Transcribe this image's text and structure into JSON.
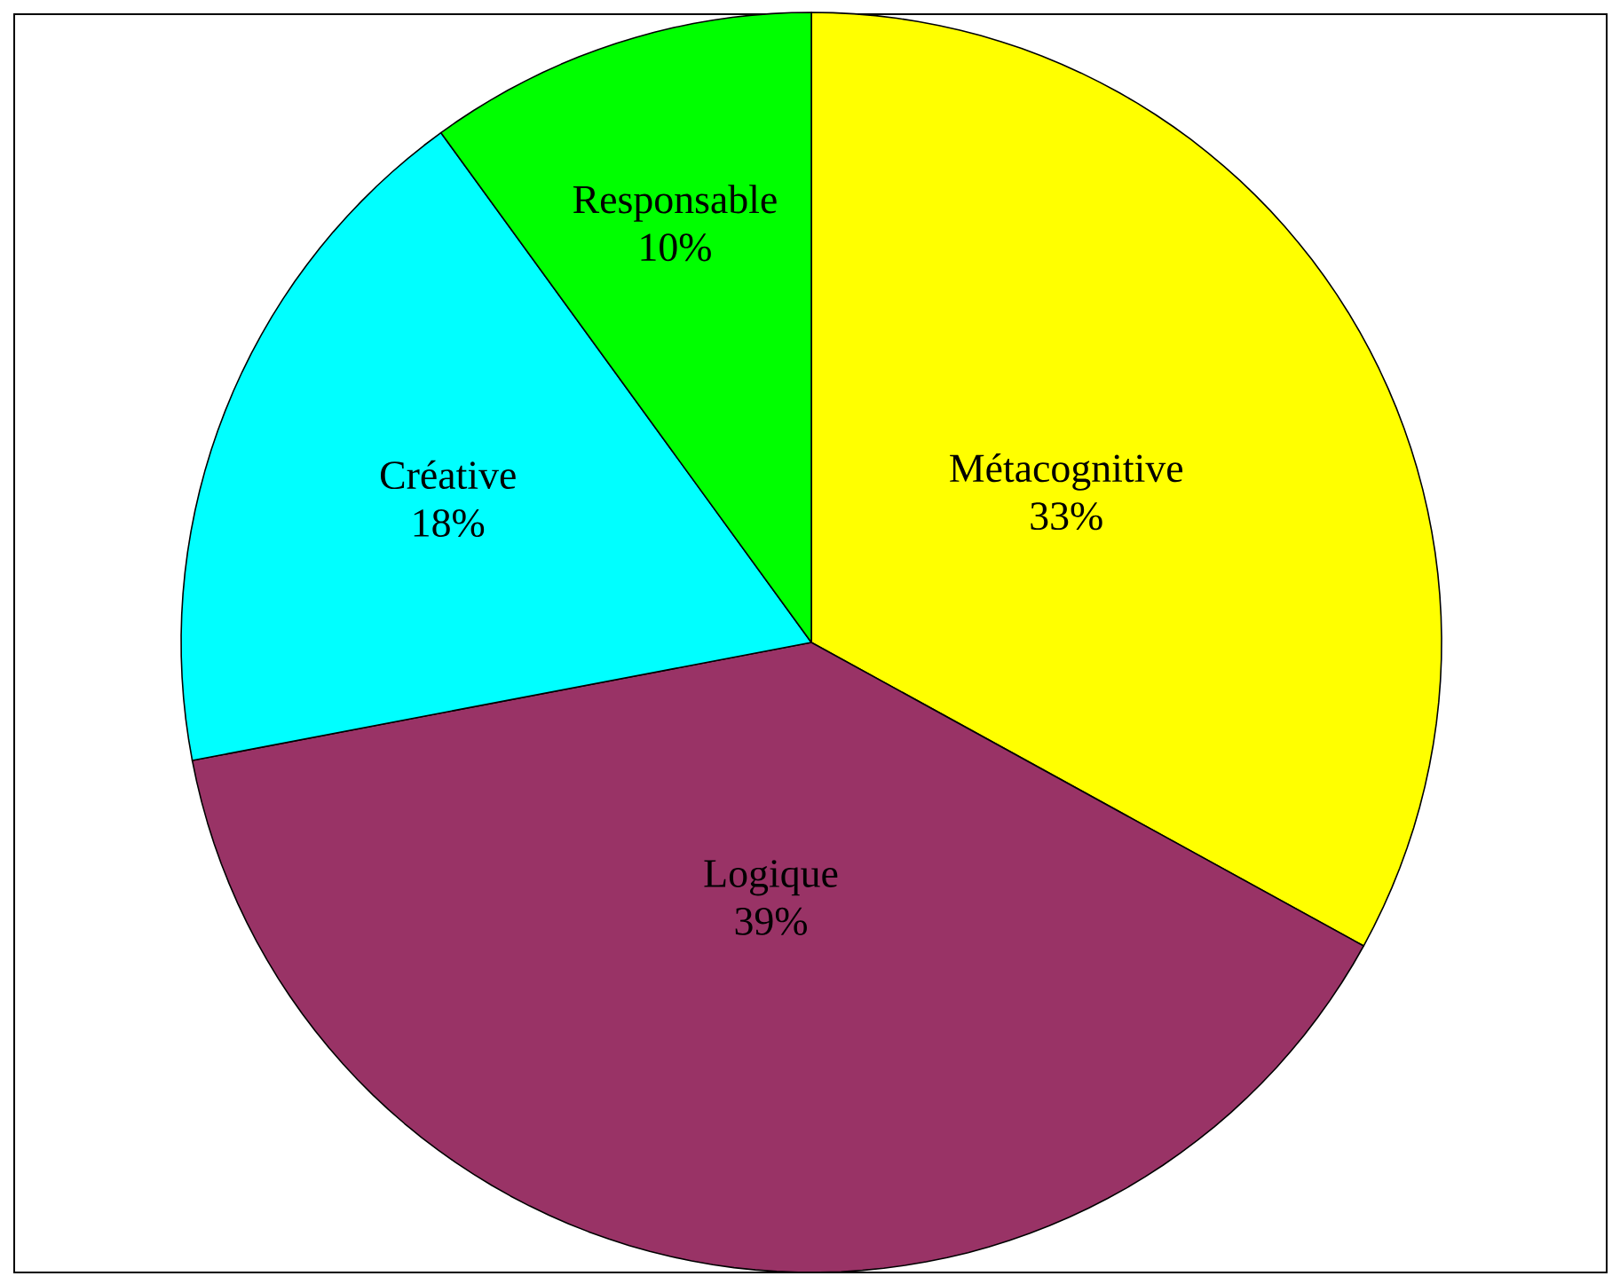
{
  "chart_data": {
    "type": "pie",
    "categories": [
      "Métacognitive",
      "Logique",
      "Créative",
      "Responsable"
    ],
    "values": [
      33,
      39,
      18,
      10
    ],
    "value_labels": [
      "33%",
      "39%",
      "18%",
      "10%"
    ],
    "colors": [
      "#ffff00",
      "#993366",
      "#00ffff",
      "#00ff00"
    ]
  }
}
